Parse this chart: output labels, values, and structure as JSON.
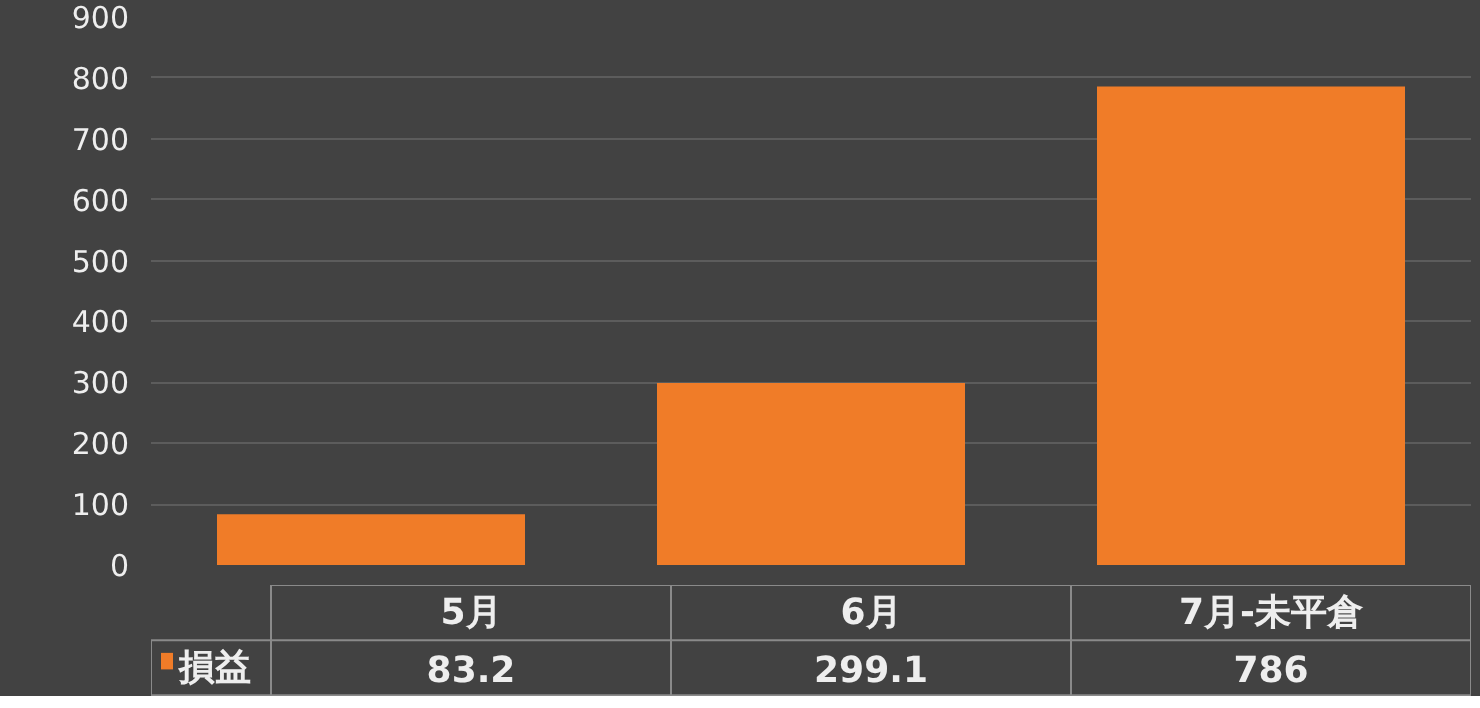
{
  "chart_data": {
    "type": "bar",
    "categories": [
      "5月",
      "6月",
      "7月-未平倉"
    ],
    "series": [
      {
        "name": "損益",
        "color": "#f07c28",
        "values": [
          83.2,
          299.1,
          786
        ]
      }
    ],
    "ylim": [
      0,
      900
    ],
    "yticks": [
      0,
      100,
      200,
      300,
      400,
      500,
      600,
      700,
      800,
      900
    ],
    "grid": "y",
    "data_labels": true,
    "legend": "bottom left"
  }
}
